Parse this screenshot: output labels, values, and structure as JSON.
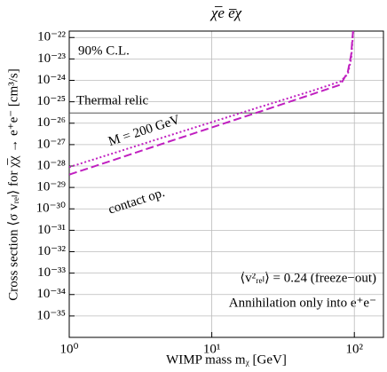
{
  "chart_data": {
    "type": "line",
    "title": "χ̅e e̅χ",
    "xlabel": "WIMP mass mᵪ [GeV]",
    "ylabel": "Cross section ⟨σ vᵣₑₗ⟩ for χ̅χ → e⁺e⁻ [cm³/s]",
    "log_x": true,
    "log_y": true,
    "grid": true,
    "xlim": [
      1,
      160
    ],
    "ylim": [
      1e-36,
      2e-22
    ],
    "xticks": [
      {
        "value": 1,
        "label": "10⁰"
      },
      {
        "value": 10,
        "label": "10¹"
      },
      {
        "value": 100,
        "label": "10²"
      }
    ],
    "yticks": [
      {
        "value": 1e-35,
        "label": "10⁻³⁵"
      },
      {
        "value": 1e-34,
        "label": "10⁻³⁴"
      },
      {
        "value": 1e-33,
        "label": "10⁻³³"
      },
      {
        "value": 1e-32,
        "label": "10⁻³²"
      },
      {
        "value": 1e-31,
        "label": "10⁻³¹"
      },
      {
        "value": 1e-30,
        "label": "10⁻³⁰"
      },
      {
        "value": 1e-29,
        "label": "10⁻²⁹"
      },
      {
        "value": 1e-28,
        "label": "10⁻²⁸"
      },
      {
        "value": 1e-27,
        "label": "10⁻²⁷"
      },
      {
        "value": 1e-26,
        "label": "10⁻²⁶"
      },
      {
        "value": 1e-25,
        "label": "10⁻²⁵"
      },
      {
        "value": 1e-24,
        "label": "10⁻²⁴"
      },
      {
        "value": 1e-23,
        "label": "10⁻²³"
      },
      {
        "value": 1e-22,
        "label": "10⁻²²"
      }
    ],
    "x": [
      1,
      2,
      5,
      10,
      20,
      50,
      80,
      90,
      95,
      97,
      98
    ],
    "series": [
      {
        "name": "contact op.",
        "color": "#c020c0",
        "dash": "dashed",
        "values": [
          3.98e-29,
          1.82e-28,
          1.38e-27,
          6.31e-27,
          2.88e-26,
          2.19e-25,
          6.31e-25,
          2.51e-24,
          1.58e-23,
          1e-22,
          2e-22
        ]
      },
      {
        "name": "M = 200 GeV",
        "color": "#c020c0",
        "dash": "dotted",
        "values": [
          8.9e-29,
          3.8e-28,
          2.63e-27,
          1.12e-26,
          4.79e-26,
          3.16e-25,
          8.9e-25,
          2e-24,
          1e-23,
          6.3e-23,
          2e-22
        ]
      }
    ],
    "hline": {
      "label": "Thermal relic",
      "value": 3e-26,
      "color": "#555555"
    },
    "annotations": [
      "90% C.L.",
      "⟨v²ᵣₑₗ⟩ = 0.24 (freeze−out)",
      "Annihilation only into e⁺e⁻"
    ]
  }
}
